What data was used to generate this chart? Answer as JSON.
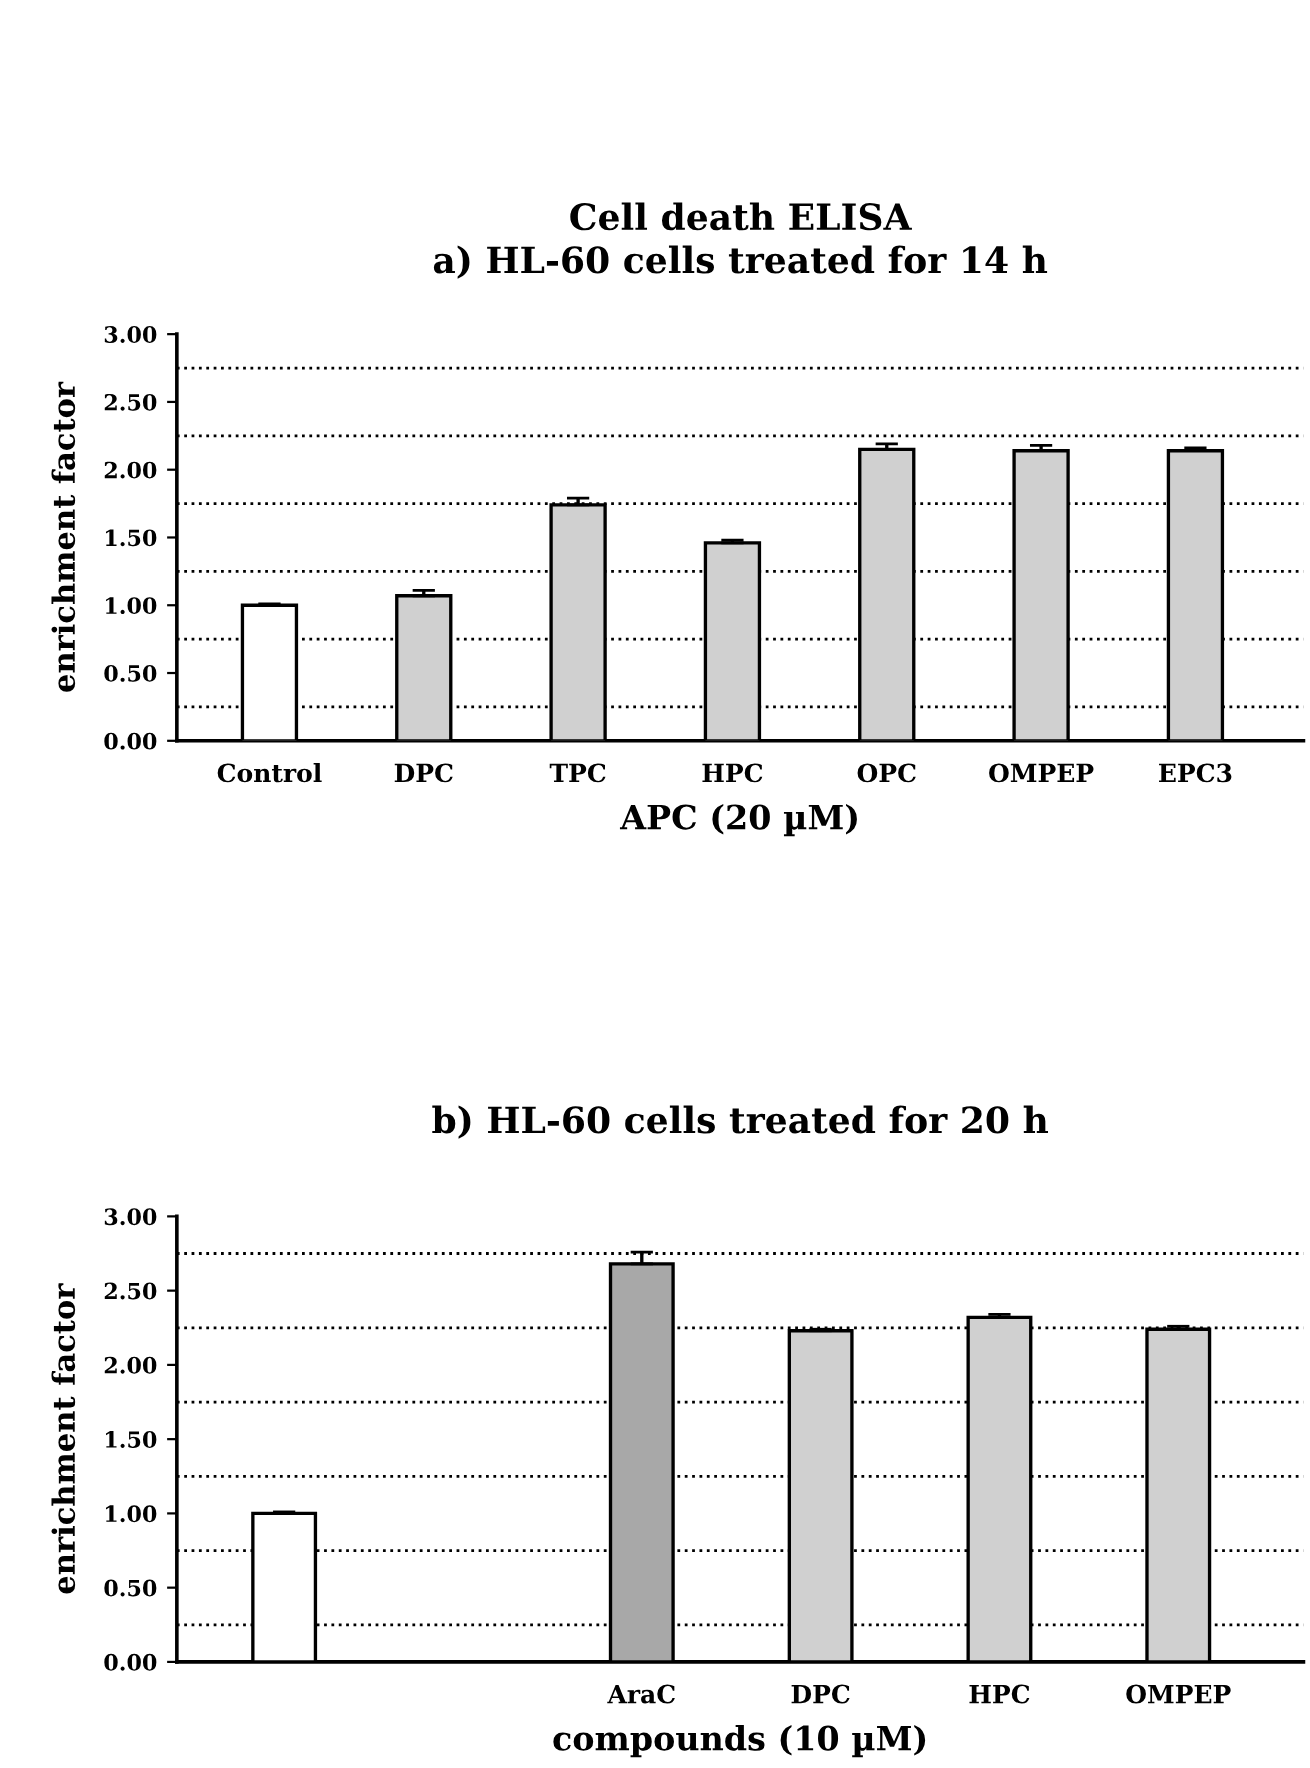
{
  "chart_data": [
    {
      "type": "bar",
      "title": "Cell death ELISA",
      "subtitle": "a) HL-60 cells treated for 14 h",
      "xlabel": "APC (20 µM)",
      "ylabel": "enrichment factor",
      "categories": [
        "Control",
        "DPC",
        "TPC",
        "HPC",
        "OPC",
        "OMPEP",
        "EPC3"
      ],
      "values": [
        1.0,
        1.07,
        1.74,
        1.46,
        2.15,
        2.14,
        2.14
      ],
      "errors": [
        0.01,
        0.04,
        0.05,
        0.02,
        0.04,
        0.04,
        0.02
      ],
      "colors": [
        "#ffffff",
        "#d0d0d0",
        "#d0d0d0",
        "#d0d0d0",
        "#d0d0d0",
        "#d0d0d0",
        "#d0d0d0"
      ],
      "ylim": [
        0,
        3.0
      ],
      "yticks": [
        {
          "value": 0,
          "label": "0.00"
        },
        {
          "value": 0.5,
          "label": "0.50"
        },
        {
          "value": 1.0,
          "label": "1.00"
        },
        {
          "value": 1.5,
          "label": "1.50"
        },
        {
          "value": 2.0,
          "label": "2.00"
        },
        {
          "value": 2.5,
          "label": "2.50"
        },
        {
          "value": 3.0,
          "label": "3.00"
        }
      ],
      "ref_lines": [
        {
          "axis": "y",
          "value": 0.25,
          "line_style": "dotted"
        },
        {
          "axis": "y",
          "value": 0.75,
          "line_style": "dotted"
        },
        {
          "axis": "y",
          "value": 1.25,
          "line_style": "dotted"
        },
        {
          "axis": "y",
          "value": 1.75,
          "line_style": "dotted"
        },
        {
          "axis": "y",
          "value": 2.25,
          "line_style": "dotted"
        },
        {
          "axis": "y",
          "value": 2.75,
          "line_style": "dotted"
        }
      ]
    },
    {
      "type": "bar",
      "title": "b) HL-60 cells treated for 20 h",
      "xlabel": "compounds (10 µM)",
      "ylabel": "enrichment factor",
      "categories": [
        null,
        null,
        "AraC",
        "DPC",
        "HPC",
        "OMPEP"
      ],
      "values": [
        1.0,
        null,
        2.68,
        2.23,
        2.32,
        2.24
      ],
      "errors": [
        0.01,
        null,
        0.08,
        0.01,
        0.02,
        0.02
      ],
      "colors": [
        "#ffffff",
        "#ffffff",
        "#a8a8a8",
        "#d0d0d0",
        "#d0d0d0",
        "#d0d0d0"
      ],
      "ylim": [
        0,
        3.0
      ],
      "yticks": [
        {
          "value": 0,
          "label": "0.00"
        },
        {
          "value": 0.5,
          "label": "0.50"
        },
        {
          "value": 1.0,
          "label": "1.00"
        },
        {
          "value": 1.5,
          "label": "1.50"
        },
        {
          "value": 2.0,
          "label": "2.00"
        },
        {
          "value": 2.5,
          "label": "2.50"
        },
        {
          "value": 3.0,
          "label": "3.00"
        }
      ],
      "ref_lines": [
        {
          "axis": "y",
          "value": 0.25,
          "line_style": "dotted"
        },
        {
          "axis": "y",
          "value": 0.75,
          "line_style": "dotted"
        },
        {
          "axis": "y",
          "value": 1.25,
          "line_style": "dotted"
        },
        {
          "axis": "y",
          "value": 1.75,
          "line_style": "dotted"
        },
        {
          "axis": "y",
          "value": 2.25,
          "line_style": "dotted"
        },
        {
          "axis": "y",
          "value": 2.75,
          "line_style": "dotted"
        }
      ]
    }
  ]
}
